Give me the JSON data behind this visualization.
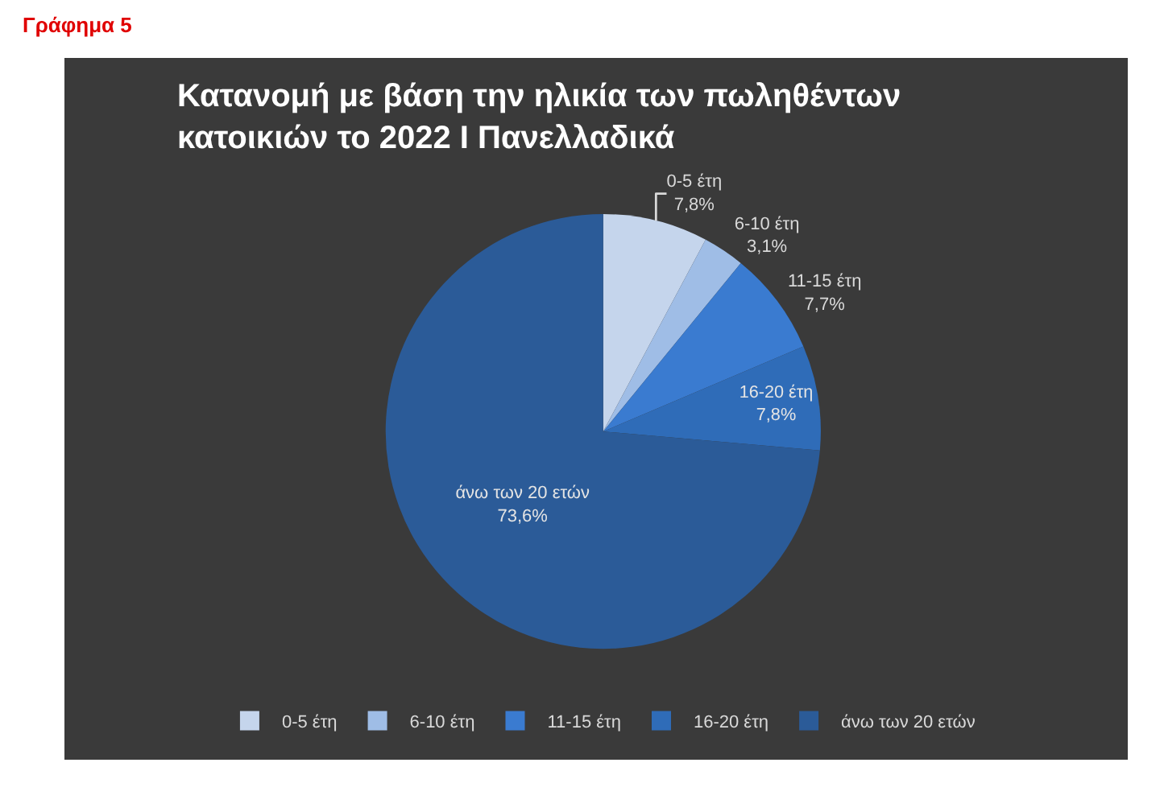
{
  "chart_data": {
    "type": "pie",
    "title": "Κατανομή με βάση την ηλικία των πωληθέντων κατοικιών το 2022 Ι Πανελλαδικά",
    "annotations": [
      "Γράφημα 5"
    ],
    "categories": [
      "0-5 έτη",
      "6-10 έτη",
      "11-15 έτη",
      "16-20 έτη",
      "άνω των 20 ετών"
    ],
    "values": [
      7.8,
      3.1,
      7.7,
      7.8,
      73.6
    ],
    "value_labels": [
      "7,8%",
      "3,1%",
      "7,7%",
      "7,8%",
      "73,6%"
    ],
    "colors": [
      "#c5d5ec",
      "#9fbde6",
      "#3a7bd0",
      "#2f6cb8",
      "#2b5b98"
    ],
    "legend": "bottom"
  }
}
